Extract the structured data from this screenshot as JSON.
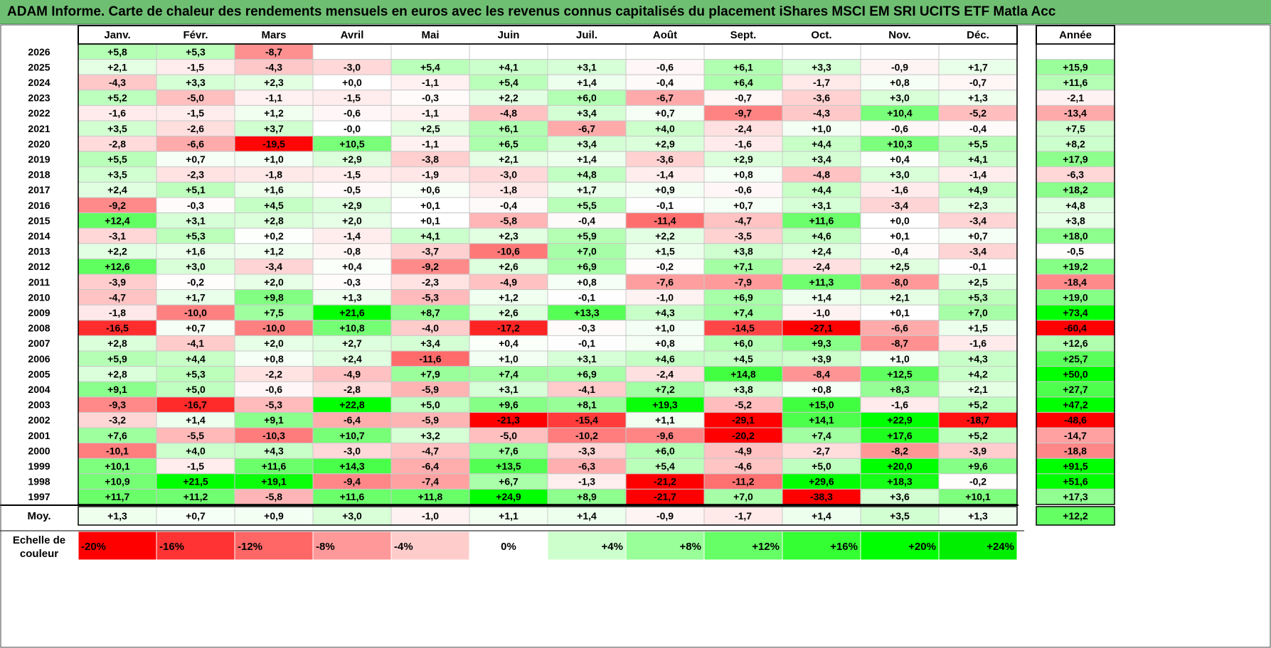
{
  "title": "ADAM Informe. Carte de chaleur des rendements mensuels en euros avec les revenus connus capitalisés du placement iShares MSCI EM SRI UCITS ETF Matla Acc",
  "chart_data": {
    "type": "heatmap",
    "columns": [
      "Janv.",
      "Févr.",
      "Mars",
      "Avril",
      "Mai",
      "Juin",
      "Juil.",
      "Août",
      "Sept.",
      "Oct.",
      "Nov.",
      "Déc."
    ],
    "year_label": "Année",
    "avg_label": "Moy.",
    "scale_label": "Echelle de couleur",
    "rows": [
      {
        "year": "2026",
        "values": [
          "+5,8",
          "+5,3",
          "-8,7",
          "",
          "",
          "",
          "",
          "",
          "",
          "",
          "",
          ""
        ],
        "annual": ""
      },
      {
        "year": "2025",
        "values": [
          "+2,1",
          "-1,5",
          "-4,3",
          "-3,0",
          "+5,4",
          "+4,1",
          "+3,1",
          "-0,6",
          "+6,1",
          "+3,3",
          "-0,9",
          "+1,7"
        ],
        "annual": "+15,9"
      },
      {
        "year": "2024",
        "values": [
          "-4,3",
          "+3,3",
          "+2,3",
          "+0,0",
          "-1,1",
          "+5,4",
          "+1,4",
          "-0,4",
          "+6,4",
          "-1,7",
          "+0,8",
          "-0,7"
        ],
        "annual": "+11,6"
      },
      {
        "year": "2023",
        "values": [
          "+5,2",
          "-5,0",
          "-1,1",
          "-1,5",
          "-0,3",
          "+2,2",
          "+6,0",
          "-6,7",
          "-0,7",
          "-3,6",
          "+3,0",
          "+1,3"
        ],
        "annual": "-2,1"
      },
      {
        "year": "2022",
        "values": [
          "-1,6",
          "-1,5",
          "+1,2",
          "-0,6",
          "-1,1",
          "-4,8",
          "+3,4",
          "+0,7",
          "-9,7",
          "-4,3",
          "+10,4",
          "-5,2"
        ],
        "annual": "-13,4"
      },
      {
        "year": "2021",
        "values": [
          "+3,5",
          "-2,6",
          "+3,7",
          "-0,0",
          "+2,5",
          "+6,1",
          "-6,7",
          "+4,0",
          "-2,4",
          "+1,0",
          "-0,6",
          "-0,4"
        ],
        "annual": "+7,5"
      },
      {
        "year": "2020",
        "values": [
          "-2,8",
          "-6,6",
          "-19,5",
          "+10,5",
          "-1,1",
          "+6,5",
          "+3,4",
          "+2,9",
          "-1,6",
          "+4,4",
          "+10,3",
          "+5,5"
        ],
        "annual": "+8,2"
      },
      {
        "year": "2019",
        "values": [
          "+5,5",
          "+0,7",
          "+1,0",
          "+2,9",
          "-3,8",
          "+2,1",
          "+1,4",
          "-3,6",
          "+2,9",
          "+3,4",
          "+0,4",
          "+4,1"
        ],
        "annual": "+17,9"
      },
      {
        "year": "2018",
        "values": [
          "+3,5",
          "-2,3",
          "-1,8",
          "-1,5",
          "-1,9",
          "-3,0",
          "+4,8",
          "-1,4",
          "+0,8",
          "-4,8",
          "+3,0",
          "-1,4"
        ],
        "annual": "-6,3"
      },
      {
        "year": "2017",
        "values": [
          "+2,4",
          "+5,1",
          "+1,6",
          "-0,5",
          "+0,6",
          "-1,8",
          "+1,7",
          "+0,9",
          "-0,6",
          "+4,4",
          "-1,6",
          "+4,9"
        ],
        "annual": "+18,2"
      },
      {
        "year": "2016",
        "values": [
          "-9,2",
          "-0,3",
          "+4,5",
          "+2,9",
          "+0,1",
          "-0,4",
          "+5,5",
          "-0,1",
          "+0,7",
          "+3,1",
          "-3,4",
          "+2,3"
        ],
        "annual": "+4,8"
      },
      {
        "year": "2015",
        "values": [
          "+12,4",
          "+3,1",
          "+2,8",
          "+2,0",
          "+0,1",
          "-5,8",
          "-0,4",
          "-11,4",
          "-4,7",
          "+11,6",
          "+0,0",
          "-3,4"
        ],
        "annual": "+3,8"
      },
      {
        "year": "2014",
        "values": [
          "-3,1",
          "+5,3",
          "+0,2",
          "-1,4",
          "+4,1",
          "+2,3",
          "+5,9",
          "+2,2",
          "-3,5",
          "+4,6",
          "+0,1",
          "+0,7"
        ],
        "annual": "+18,0"
      },
      {
        "year": "2013",
        "values": [
          "+2,2",
          "+1,6",
          "+1,2",
          "-0,8",
          "-3,7",
          "-10,6",
          "+7,0",
          "+1,5",
          "+3,8",
          "+2,4",
          "-0,4",
          "-3,4"
        ],
        "annual": "-0,5"
      },
      {
        "year": "2012",
        "values": [
          "+12,6",
          "+3,0",
          "-3,4",
          "+0,4",
          "-9,2",
          "+2,6",
          "+6,9",
          "-0,2",
          "+7,1",
          "-2,4",
          "+2,5",
          "-0,1"
        ],
        "annual": "+19,2"
      },
      {
        "year": "2011",
        "values": [
          "-3,9",
          "-0,2",
          "+2,0",
          "-0,3",
          "-2,3",
          "-4,9",
          "+0,8",
          "-7,6",
          "-7,9",
          "+11,3",
          "-8,0",
          "+2,5"
        ],
        "annual": "-18,4"
      },
      {
        "year": "2010",
        "values": [
          "-4,7",
          "+1,7",
          "+9,8",
          "+1,3",
          "-5,3",
          "+1,2",
          "-0,1",
          "-1,0",
          "+6,9",
          "+1,4",
          "+2,1",
          "+5,3"
        ],
        "annual": "+19,0"
      },
      {
        "year": "2009",
        "values": [
          "-1,8",
          "-10,0",
          "+7,5",
          "+21,6",
          "+8,7",
          "+2,6",
          "+13,3",
          "+4,3",
          "+7,4",
          "-1,0",
          "+0,1",
          "+7,0"
        ],
        "annual": "+73,4"
      },
      {
        "year": "2008",
        "values": [
          "-16,5",
          "+0,7",
          "-10,0",
          "+10,8",
          "-4,0",
          "-17,2",
          "-0,3",
          "+1,0",
          "-14,5",
          "-27,1",
          "-6,6",
          "+1,5"
        ],
        "annual": "-60,4"
      },
      {
        "year": "2007",
        "values": [
          "+2,8",
          "-4,1",
          "+2,0",
          "+2,7",
          "+3,4",
          "+0,4",
          "-0,1",
          "+0,8",
          "+6,0",
          "+9,3",
          "-8,7",
          "-1,6"
        ],
        "annual": "+12,6"
      },
      {
        "year": "2006",
        "values": [
          "+5,9",
          "+4,4",
          "+0,8",
          "+2,4",
          "-11,6",
          "+1,0",
          "+3,1",
          "+4,6",
          "+4,5",
          "+3,9",
          "+1,0",
          "+4,3"
        ],
        "annual": "+25,7"
      },
      {
        "year": "2005",
        "values": [
          "+2,8",
          "+5,3",
          "-2,2",
          "-4,9",
          "+7,9",
          "+7,4",
          "+6,9",
          "-2,4",
          "+14,8",
          "-8,4",
          "+12,5",
          "+4,2"
        ],
        "annual": "+50,0"
      },
      {
        "year": "2004",
        "values": [
          "+9,1",
          "+5,0",
          "-0,6",
          "-2,8",
          "-5,9",
          "+3,1",
          "-4,1",
          "+7,2",
          "+3,8",
          "+0,8",
          "+8,3",
          "+2,1"
        ],
        "annual": "+27,7"
      },
      {
        "year": "2003",
        "values": [
          "-9,3",
          "-16,7",
          "-5,3",
          "+22,8",
          "+5,0",
          "+9,6",
          "+8,1",
          "+19,3",
          "-5,2",
          "+15,0",
          "-1,6",
          "+5,2"
        ],
        "annual": "+47,2"
      },
      {
        "year": "2002",
        "values": [
          "-3,2",
          "+1,4",
          "+9,1",
          "-6,4",
          "-5,9",
          "-21,3",
          "-15,4",
          "+1,1",
          "-29,1",
          "+14,1",
          "+22,9",
          "-18,7"
        ],
        "annual": "-48,6"
      },
      {
        "year": "2001",
        "values": [
          "+7,6",
          "-5,5",
          "-10,3",
          "+10,7",
          "+3,2",
          "-5,0",
          "-10,2",
          "-9,6",
          "-20,2",
          "+7,4",
          "+17,6",
          "+5,2"
        ],
        "annual": "-14,7"
      },
      {
        "year": "2000",
        "values": [
          "-10,1",
          "+4,0",
          "+4,3",
          "-3,0",
          "-4,7",
          "+7,6",
          "-3,3",
          "+6,0",
          "-4,9",
          "-2,7",
          "-8,2",
          "-3,9"
        ],
        "annual": "-18,8"
      },
      {
        "year": "1999",
        "values": [
          "+10,1",
          "-1,5",
          "+11,6",
          "+14,3",
          "-6,4",
          "+13,5",
          "-6,3",
          "+5,4",
          "-4,6",
          "+5,0",
          "+20,0",
          "+9,6"
        ],
        "annual": "+91,5"
      },
      {
        "year": "1998",
        "values": [
          "+10,9",
          "+21,5",
          "+19,1",
          "-9,4",
          "-7,4",
          "+6,7",
          "-1,3",
          "-21,2",
          "-11,2",
          "+29,6",
          "+18,3",
          "-0,2"
        ],
        "annual": "+51,6"
      },
      {
        "year": "1997",
        "values": [
          "+11,7",
          "+11,2",
          "-5,8",
          "+11,6",
          "+11,8",
          "+24,9",
          "+8,9",
          "-21,7",
          "+7,0",
          "-38,3",
          "+3,6",
          "+10,1"
        ],
        "annual": "+17,3"
      }
    ],
    "averages": {
      "values": [
        "+1,3",
        "+0,7",
        "+0,9",
        "+3,0",
        "-1,0",
        "+1,1",
        "+1,4",
        "-0,9",
        "-1,7",
        "+1,4",
        "+3,5",
        "+1,3"
      ],
      "annual": "+12,2"
    },
    "scale": [
      {
        "label": "-20%",
        "color": "#ff0000"
      },
      {
        "label": "-16%",
        "color": "#ff3333"
      },
      {
        "label": "-12%",
        "color": "#ff6666"
      },
      {
        "label": "-8%",
        "color": "#ff9999"
      },
      {
        "label": "-4%",
        "color": "#ffcccc"
      },
      {
        "label": "0%",
        "color": "#ffffff"
      },
      {
        "label": "+4%",
        "color": "#ccffcc"
      },
      {
        "label": "+8%",
        "color": "#99ff99"
      },
      {
        "label": "+12%",
        "color": "#66ff66"
      },
      {
        "label": "+16%",
        "color": "#33ff33"
      },
      {
        "label": "+20%",
        "color": "#00ff00"
      },
      {
        "label": "+24%",
        "color": "#00ee00"
      }
    ]
  }
}
